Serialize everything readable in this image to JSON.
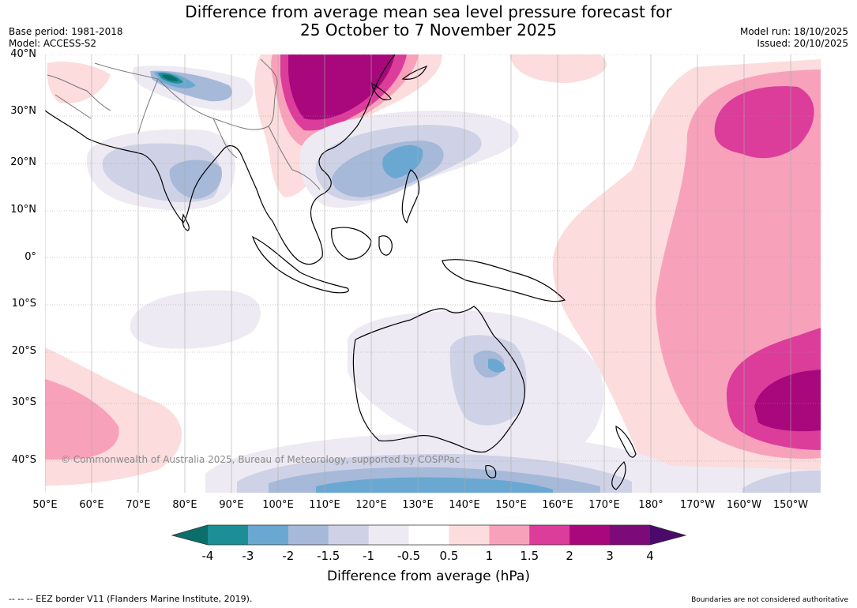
{
  "title_line1": "Difference from average mean sea level pressure forecast for",
  "title_line2": "25 October to 7 November 2025",
  "base_period": "Base period: 1981-2018",
  "model": "Model: ACCESS-S2",
  "model_run": "Model run: 18/10/2025",
  "issued": "Issued: 20/10/2025",
  "copyright": "© Commonwealth of Australia 2025, Bureau of Meteorology, supported by COSPPac",
  "lat_labels": [
    "40°N",
    "30°N",
    "20°N",
    "10°N",
    "0°",
    "10°S",
    "20°S",
    "30°S",
    "40°S"
  ],
  "lon_labels": [
    "50°E",
    "60°E",
    "70°E",
    "80°E",
    "90°E",
    "100°E",
    "110°E",
    "120°E",
    "130°E",
    "140°E",
    "150°E",
    "160°E",
    "170°E",
    "180°",
    "170°W",
    "160°W",
    "150°W"
  ],
  "colorbar": {
    "label": "Difference from average (hPa)",
    "ticks": [
      "-4",
      "-3",
      "-2",
      "-1.5",
      "-1",
      "-0.5",
      "0.5",
      "1",
      "1.5",
      "2",
      "3",
      "4"
    ],
    "colors": [
      "#0b6e6a",
      "#1b8f95",
      "#6aa8d2",
      "#a6b9d9",
      "#cfd2e6",
      "#eeeaf3",
      "#ffffff",
      "#fcdcdc",
      "#f8a1bb",
      "#dc3c9a",
      "#a8087c",
      "#7c0a78",
      "#4b0a6a"
    ]
  },
  "footer_left": "--  --  -- EEZ border V11 (Flanders Marine Institute, 2019).",
  "footer_right": "Boundaries are not considered authoritative"
}
